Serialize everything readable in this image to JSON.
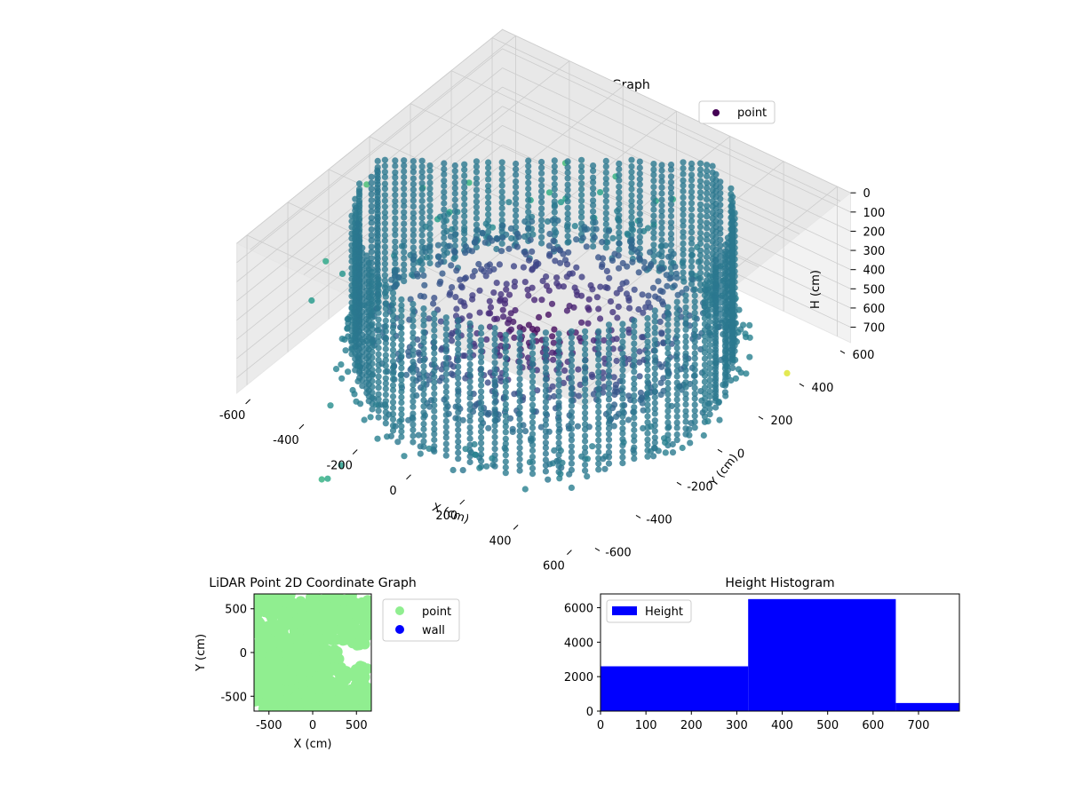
{
  "chart_data": [
    {
      "type": "scatter3d",
      "title": "LiDAR Point 3D Coordinate Graph",
      "xlabel": "X (cm)",
      "ylabel": "Y (cm)",
      "zlabel": "H (cm)",
      "xlim": [
        -650,
        650
      ],
      "ylim": [
        -650,
        650
      ],
      "zlim": [
        0,
        780
      ],
      "z_inverted": true,
      "xticks": [
        -600,
        -400,
        -200,
        0,
        200,
        400,
        600
      ],
      "yticks": [
        -600,
        -400,
        -200,
        0,
        200,
        400,
        600
      ],
      "zticks": [
        0,
        100,
        200,
        300,
        400,
        500,
        600,
        700
      ],
      "legend": {
        "entries": [
          "point"
        ],
        "position": "top-right"
      },
      "colormap": "viridis",
      "series": [
        {
          "name": "point",
          "color": "#440154",
          "shape": "cylindrical wall",
          "radius": 560,
          "h_range": [
            0,
            720
          ],
          "floor_points_h": 550,
          "scattered_points_h_range": [
            560,
            780
          ]
        }
      ]
    },
    {
      "type": "scatter",
      "title": "LiDAR Point 2D Coordinate Graph",
      "xlabel": "X (cm)",
      "ylabel": "Y (cm)",
      "xlim": [
        -670,
        670
      ],
      "ylim": [
        -670,
        670
      ],
      "xticks": [
        -500,
        0,
        500
      ],
      "yticks": [
        -500,
        0,
        500
      ],
      "legend": {
        "entries": [
          "point",
          "wall"
        ],
        "position": "outside-right"
      },
      "series": [
        {
          "name": "point",
          "color": "#90ee90",
          "coverage": "dense fill of full area"
        },
        {
          "name": "wall",
          "color": "#0000ff",
          "values": []
        }
      ]
    },
    {
      "type": "bar",
      "title": "Height Histogram",
      "xlabel": "",
      "ylabel": "",
      "xlim": [
        0,
        790
      ],
      "ylim": [
        0,
        6800
      ],
      "xticks": [
        0,
        100,
        200,
        300,
        400,
        500,
        600,
        700
      ],
      "yticks": [
        0,
        2000,
        4000,
        6000
      ],
      "legend": {
        "entries": [
          "Height"
        ],
        "position": "top-left"
      },
      "bins": [
        {
          "start": 0,
          "end": 325,
          "count": 2600
        },
        {
          "start": 325,
          "end": 650,
          "count": 6500
        },
        {
          "start": 650,
          "end": 790,
          "count": 470
        }
      ],
      "series": [
        {
          "name": "Height",
          "color": "#0000ff"
        }
      ]
    }
  ]
}
